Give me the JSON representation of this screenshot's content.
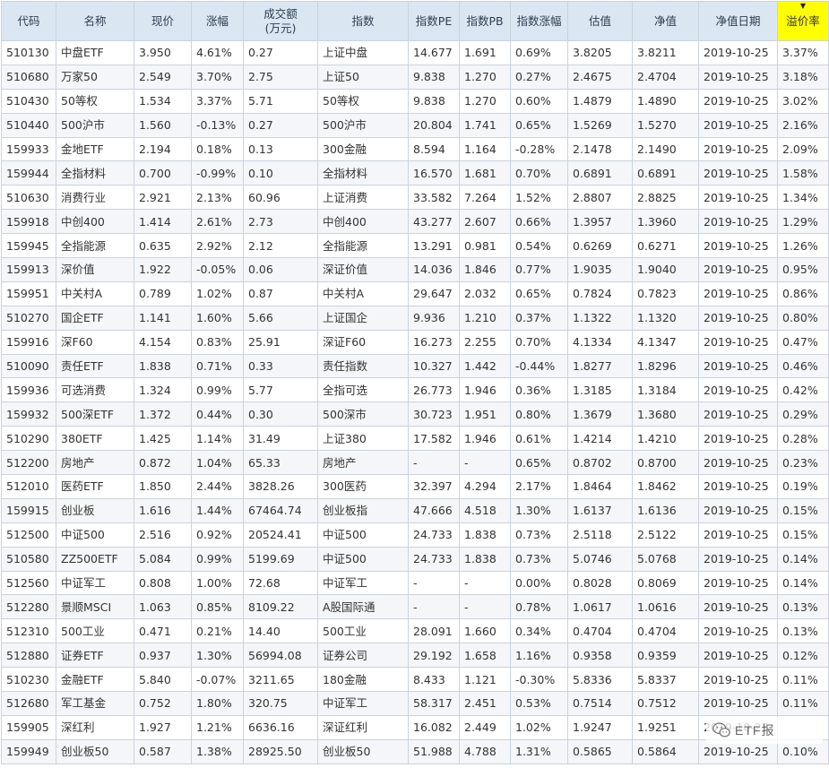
{
  "table": {
    "columns": [
      "代码",
      "名称",
      "现价",
      "涨幅",
      "成交额\n(万元)",
      "指数",
      "指数PE",
      "指数PB",
      "指数涨幅",
      "估值",
      "净值",
      "净值日期",
      "溢价率"
    ],
    "sorted_column": "溢价率",
    "colors": {
      "up": "#e0202a",
      "down": "#208a20",
      "link": "#3b6aa9",
      "header_bg": "#dbe6f3",
      "sorted_bg": "#ffff00"
    },
    "rows": [
      [
        "510130",
        "中盘ETF",
        "3.950",
        "4.61%",
        "0.27",
        "上证中盘",
        "14.677",
        "1.691",
        "0.69%",
        "3.8205",
        "3.8211",
        "2019-10-25",
        "3.37%"
      ],
      [
        "510680",
        "万家50",
        "2.549",
        "3.70%",
        "2.75",
        "上证50",
        "9.838",
        "1.270",
        "0.27%",
        "2.4675",
        "2.4704",
        "2019-10-25",
        "3.18%"
      ],
      [
        "510430",
        "50等权",
        "1.534",
        "3.37%",
        "5.71",
        "50等权",
        "9.838",
        "1.270",
        "0.60%",
        "1.4879",
        "1.4890",
        "2019-10-25",
        "3.02%"
      ],
      [
        "510440",
        "500沪市",
        "1.560",
        "-0.13%",
        "0.27",
        "500沪市",
        "20.804",
        "1.741",
        "0.65%",
        "1.5269",
        "1.5270",
        "2019-10-25",
        "2.16%"
      ],
      [
        "159933",
        "金地ETF",
        "2.194",
        "0.18%",
        "0.13",
        "300金融",
        "8.594",
        "1.164",
        "-0.28%",
        "2.1478",
        "2.1490",
        "2019-10-25",
        "2.09%"
      ],
      [
        "159944",
        "全指材料",
        "0.700",
        "-0.99%",
        "0.10",
        "全指材料",
        "16.570",
        "1.681",
        "0.70%",
        "0.6891",
        "0.6891",
        "2019-10-25",
        "1.58%"
      ],
      [
        "510630",
        "消费行业",
        "2.921",
        "2.13%",
        "60.96",
        "上证消费",
        "33.582",
        "7.264",
        "1.52%",
        "2.8807",
        "2.8825",
        "2019-10-25",
        "1.34%"
      ],
      [
        "159918",
        "中创400",
        "1.414",
        "2.61%",
        "2.73",
        "中创400",
        "43.277",
        "2.607",
        "0.66%",
        "1.3957",
        "1.3960",
        "2019-10-25",
        "1.29%"
      ],
      [
        "159945",
        "全指能源",
        "0.635",
        "2.92%",
        "2.12",
        "全指能源",
        "13.291",
        "0.981",
        "0.54%",
        "0.6269",
        "0.6271",
        "2019-10-25",
        "1.26%"
      ],
      [
        "159913",
        "深价值",
        "1.922",
        "-0.05%",
        "0.06",
        "深证价值",
        "14.036",
        "1.846",
        "0.77%",
        "1.9035",
        "1.9040",
        "2019-10-25",
        "0.95%"
      ],
      [
        "159951",
        "中关村A",
        "0.789",
        "1.02%",
        "0.87",
        "中关村A",
        "29.647",
        "2.032",
        "0.65%",
        "0.7824",
        "0.7823",
        "2019-10-25",
        "0.86%"
      ],
      [
        "510270",
        "国企ETF",
        "1.141",
        "1.60%",
        "5.66",
        "上证国企",
        "9.936",
        "1.210",
        "0.37%",
        "1.1322",
        "1.1320",
        "2019-10-25",
        "0.80%"
      ],
      [
        "159916",
        "深F60",
        "4.154",
        "0.83%",
        "25.91",
        "深证F60",
        "16.273",
        "2.255",
        "0.70%",
        "4.1334",
        "4.1347",
        "2019-10-25",
        "0.47%"
      ],
      [
        "510090",
        "责任ETF",
        "1.838",
        "0.71%",
        "0.33",
        "责任指数",
        "10.327",
        "1.442",
        "-0.44%",
        "1.8277",
        "1.8296",
        "2019-10-25",
        "0.46%"
      ],
      [
        "159936",
        "可选消费",
        "1.324",
        "0.99%",
        "5.77",
        "全指可选",
        "26.773",
        "1.946",
        "0.36%",
        "1.3185",
        "1.3184",
        "2019-10-25",
        "0.42%"
      ],
      [
        "159932",
        "500深ETF",
        "1.372",
        "0.44%",
        "0.30",
        "500深市",
        "30.723",
        "1.951",
        "0.80%",
        "1.3679",
        "1.3680",
        "2019-10-25",
        "0.29%"
      ],
      [
        "510290",
        "380ETF",
        "1.425",
        "1.14%",
        "31.49",
        "上证380",
        "17.582",
        "1.946",
        "0.61%",
        "1.4214",
        "1.4210",
        "2019-10-25",
        "0.28%"
      ],
      [
        "512200",
        "房地产",
        "0.872",
        "1.04%",
        "65.33",
        "房地产",
        "-",
        "-",
        "0.65%",
        "0.8702",
        "0.8700",
        "2019-10-25",
        "0.23%"
      ],
      [
        "512010",
        "医药ETF",
        "1.850",
        "2.44%",
        "3828.26",
        "300医药",
        "32.397",
        "4.294",
        "2.17%",
        "1.8464",
        "1.8462",
        "2019-10-25",
        "0.19%"
      ],
      [
        "159915",
        "创业板",
        "1.616",
        "1.44%",
        "67464.74",
        "创业板指",
        "47.666",
        "4.518",
        "1.30%",
        "1.6137",
        "1.6136",
        "2019-10-25",
        "0.15%"
      ],
      [
        "512500",
        "中证500",
        "2.516",
        "0.92%",
        "20524.41",
        "中证500",
        "24.733",
        "1.838",
        "0.73%",
        "2.5118",
        "2.5122",
        "2019-10-25",
        "0.15%"
      ],
      [
        "510580",
        "ZZ500ETF",
        "5.084",
        "0.99%",
        "5199.69",
        "中证500",
        "24.733",
        "1.838",
        "0.73%",
        "5.0746",
        "5.0768",
        "2019-10-25",
        "0.14%"
      ],
      [
        "512560",
        "中证军工",
        "0.808",
        "1.00%",
        "72.68",
        "中证军工",
        "-",
        "-",
        "0.00%",
        "0.8028",
        "0.8069",
        "2019-10-25",
        "0.14%"
      ],
      [
        "512280",
        "景顺MSCI",
        "1.063",
        "0.85%",
        "8109.22",
        "A股国际通",
        "-",
        "-",
        "0.78%",
        "1.0617",
        "1.0616",
        "2019-10-25",
        "0.13%"
      ],
      [
        "512310",
        "500工业",
        "0.471",
        "0.21%",
        "14.40",
        "500工业",
        "28.091",
        "1.660",
        "0.34%",
        "0.4704",
        "0.4704",
        "2019-10-25",
        "0.13%"
      ],
      [
        "512880",
        "证券ETF",
        "0.937",
        "1.30%",
        "56994.08",
        "证券公司",
        "29.192",
        "1.658",
        "1.16%",
        "0.9358",
        "0.9359",
        "2019-10-25",
        "0.12%"
      ],
      [
        "510230",
        "金融ETF",
        "5.840",
        "-0.07%",
        "3211.65",
        "180金融",
        "8.433",
        "1.121",
        "-0.30%",
        "5.8336",
        "5.8337",
        "2019-10-25",
        "0.11%"
      ],
      [
        "512680",
        "军工基金",
        "0.752",
        "1.80%",
        "320.75",
        "中证军工",
        "58.317",
        "2.451",
        "0.53%",
        "0.7514",
        "0.7512",
        "2019-10-25",
        "0.11%"
      ],
      [
        "159905",
        "深红利",
        "1.927",
        "1.21%",
        "6636.16",
        "深证红利",
        "16.082",
        "2.449",
        "1.02%",
        "1.9247",
        "1.9251",
        "2019-10-25",
        ""
      ],
      [
        "159949",
        "创业板50",
        "0.587",
        "1.38%",
        "28925.50",
        "创业板50",
        "51.988",
        "4.788",
        "1.31%",
        "0.5865",
        "0.5864",
        "2019-10-25",
        "0.10%"
      ]
    ],
    "index_not_linked": [
      "房地产",
      "中证军工|22",
      "A股国际通"
    ]
  },
  "watermark": {
    "icon": "wechat-icon",
    "text": "ETF报"
  }
}
